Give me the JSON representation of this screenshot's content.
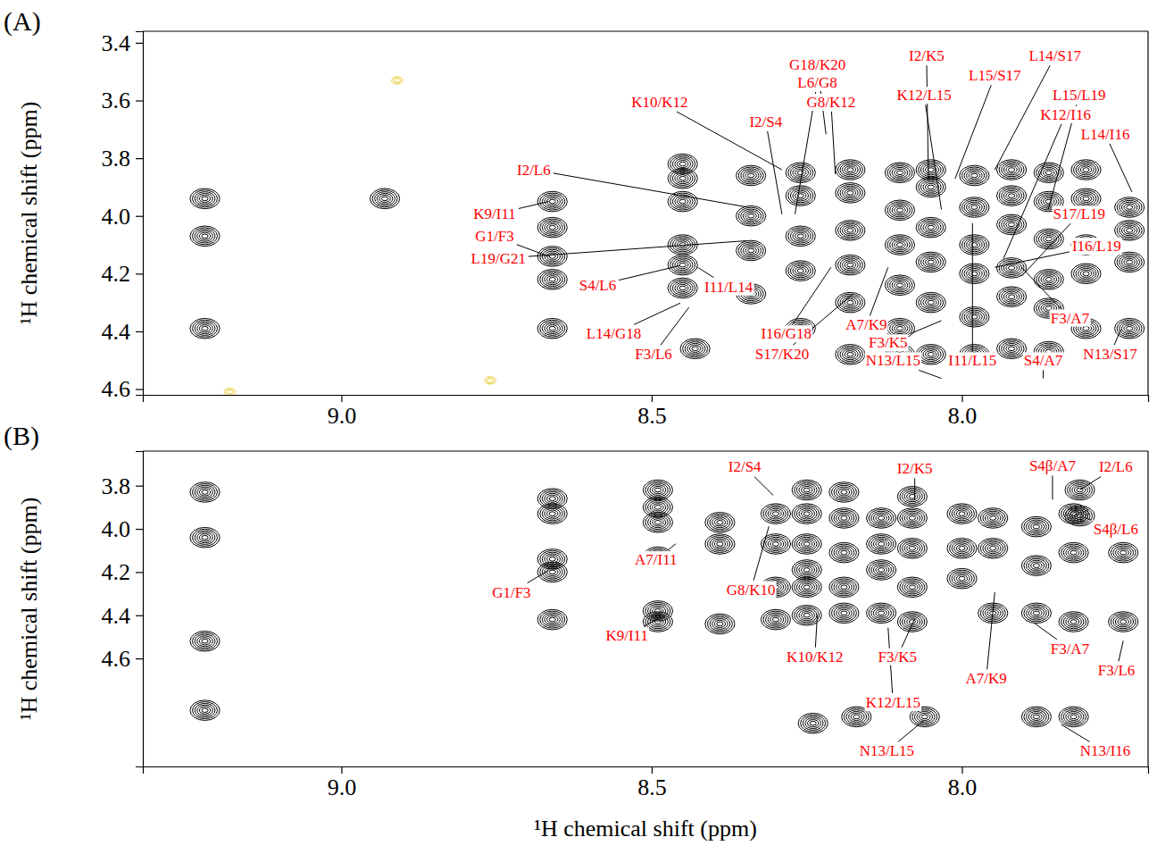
{
  "chart_data": [
    {
      "type": "contour",
      "title": "(A)",
      "ylabel": "¹H chemical shift (ppm)",
      "xlim": [
        9.32,
        7.7
      ],
      "ylim": [
        3.36,
        4.62
      ],
      "xticks": [
        {
          "value": 9,
          "label": "9.0"
        },
        8.5,
        {
          "value": 8,
          "label": "8.0"
        }
      ],
      "yticks": [
        3.4,
        3.6,
        3.8,
        {
          "value": 4,
          "label": "4.0"
        },
        4.2,
        4.4,
        4.6
      ],
      "series": [
        {
          "color": "#000000",
          "marker": "contour",
          "x": [
            9.22,
            9.22,
            9.22,
            8.93,
            8.66,
            8.66,
            8.66,
            8.66,
            8.66,
            8.45,
            8.45,
            8.45,
            8.45,
            8.45,
            8.45,
            8.43,
            8.34,
            8.34,
            8.34,
            8.34,
            8.26,
            8.26,
            8.26,
            8.26,
            8.26,
            8.18,
            8.18,
            8.18,
            8.18,
            8.18,
            8.18,
            8.1,
            8.1,
            8.1,
            8.1,
            8.1,
            8.1,
            8.05,
            8.05,
            8.05,
            8.05,
            8.05,
            8.05,
            7.98,
            7.98,
            7.98,
            7.98,
            7.98,
            7.98,
            7.92,
            7.92,
            7.92,
            7.92,
            7.92,
            7.92,
            7.86,
            7.86,
            7.86,
            7.86,
            7.86,
            7.86,
            7.8,
            7.8,
            7.8,
            7.8,
            7.8,
            7.73,
            7.73,
            7.73,
            7.73
          ],
          "y": [
            3.94,
            4.07,
            4.39,
            3.94,
            3.95,
            4.04,
            4.14,
            4.22,
            4.39,
            3.82,
            3.87,
            3.95,
            4.1,
            4.17,
            4.25,
            4.46,
            3.86,
            4.0,
            4.12,
            4.27,
            3.85,
            3.93,
            4.07,
            4.19,
            4.39,
            3.84,
            3.92,
            4.05,
            4.17,
            4.3,
            4.48,
            3.85,
            3.98,
            4.1,
            4.24,
            4.39,
            4.48,
            3.84,
            3.9,
            4.04,
            4.16,
            4.3,
            4.48,
            3.86,
            3.97,
            4.1,
            4.2,
            4.35,
            4.48,
            3.84,
            3.93,
            4.03,
            4.18,
            4.28,
            4.46,
            3.85,
            3.95,
            4.08,
            4.22,
            4.32,
            4.47,
            3.84,
            3.94,
            4.1,
            4.2,
            4.39,
            3.97,
            4.05,
            4.16,
            4.39
          ]
        },
        {
          "color": "#e6c619",
          "marker": "contour",
          "x": [
            8.91,
            9.18,
            8.76
          ],
          "y": [
            3.53,
            4.61,
            4.57
          ]
        }
      ],
      "annotations": [
        {
          "text": "K10/K12",
          "x": 8.29,
          "y": 3.84,
          "text_x": 8.487,
          "text_y": 3.606
        },
        {
          "text": "G18/K20",
          "x": 8.219,
          "y": 3.717,
          "text_x": 8.233,
          "text_y": 3.477
        },
        {
          "text": "L6/G8",
          "x": 8.269,
          "y": 3.994,
          "text_x": 8.233,
          "text_y": 3.538
        },
        {
          "text": "G8/K12",
          "x": 8.204,
          "y": 3.855,
          "text_x": 8.211,
          "text_y": 3.606
        },
        {
          "text": "I2/S4",
          "x": 8.29,
          "y": 3.994,
          "text_x": 8.316,
          "text_y": 3.674
        },
        {
          "text": "I2/K5",
          "x": 8.054,
          "y": 3.871,
          "text_x": 8.057,
          "text_y": 3.446
        },
        {
          "text": "L14/S17",
          "x": 7.947,
          "y": 3.84,
          "text_x": 7.85,
          "text_y": 3.446
        },
        {
          "text": "L15/S17",
          "x": 8.011,
          "y": 3.871,
          "text_x": 7.947,
          "text_y": 3.514
        },
        {
          "text": "K12/L15",
          "x": 8.033,
          "y": 3.978,
          "text_x": 8.061,
          "text_y": 3.582
        },
        {
          "text": "L15/L19",
          "x": 7.861,
          "y": 3.978,
          "text_x": 7.811,
          "text_y": 3.582
        },
        {
          "text": "K12/I16",
          "x": 7.933,
          "y": 4.148,
          "text_x": 7.833,
          "text_y": 3.649
        },
        {
          "text": "L14/I16",
          "x": 7.726,
          "y": 3.917,
          "text_x": 7.769,
          "text_y": 3.717
        },
        {
          "text": "S17/L19",
          "x": 7.904,
          "y": 4.209,
          "text_x": 7.811,
          "text_y": 3.994
        },
        {
          "text": "I16/L19",
          "x": 7.947,
          "y": 4.178,
          "text_x": 7.783,
          "text_y": 4.105
        },
        {
          "text": "I2/L6",
          "x": 8.347,
          "y": 3.969,
          "text_x": 8.69,
          "text_y": 3.84
        },
        {
          "text": "K9/I11",
          "x": 8.666,
          "y": 3.95,
          "text_x": 8.753,
          "text_y": 3.994
        },
        {
          "text": "G1/F3",
          "x": 8.666,
          "y": 4.14,
          "text_x": 8.753,
          "text_y": 4.071
        },
        {
          "text": "L19/G21",
          "x": 8.347,
          "y": 4.086,
          "text_x": 8.747,
          "text_y": 4.148
        },
        {
          "text": "S4/L6",
          "x": 8.454,
          "y": 4.172,
          "text_x": 8.587,
          "text_y": 4.24
        },
        {
          "text": "I11/L14",
          "x": 8.426,
          "y": 4.178,
          "text_x": 8.376,
          "text_y": 4.246
        },
        {
          "text": "L14/G18",
          "x": 8.454,
          "y": 4.302,
          "text_x": 8.561,
          "text_y": 4.409
        },
        {
          "text": "F3/L6",
          "x": 8.44,
          "y": 4.317,
          "text_x": 8.497,
          "text_y": 4.48
        },
        {
          "text": "I16/G18",
          "x": 8.211,
          "y": 4.178,
          "text_x": 8.283,
          "text_y": 4.409
        },
        {
          "text": "S17/K20",
          "x": 8.176,
          "y": 4.271,
          "text_x": 8.29,
          "text_y": 4.48
        },
        {
          "text": "A7/K9",
          "x": 8.119,
          "y": 4.178,
          "text_x": 8.154,
          "text_y": 4.378
        },
        {
          "text": "F3/K5",
          "x": 8.033,
          "y": 4.363,
          "text_x": 8.119,
          "text_y": 4.44
        },
        {
          "text": "N13/L15",
          "x": 8.033,
          "y": 4.563,
          "text_x": 8.111,
          "text_y": 4.502
        },
        {
          "text": "I11/L15",
          "x": 7.983,
          "y": 4.025,
          "text_x": 7.983,
          "text_y": 4.502
        },
        {
          "text": "S4/A7",
          "x": 7.869,
          "y": 4.563,
          "text_x": 7.869,
          "text_y": 4.502
        },
        {
          "text": "F3/A7",
          "x": 7.904,
          "y": 4.178,
          "text_x": 7.826,
          "text_y": 4.354
        },
        {
          "text": "N13/S17",
          "x": 7.744,
          "y": 4.394,
          "text_x": 7.761,
          "text_y": 4.48
        }
      ]
    },
    {
      "type": "contour",
      "title": "(B)",
      "xlabel": "¹H chemical shift (ppm)",
      "ylabel": "¹H chemical shift (ppm)",
      "xlim": [
        9.32,
        7.7
      ],
      "ylim": [
        3.64,
        5.1
      ],
      "xticks": [
        {
          "value": 9,
          "label": "9.0"
        },
        8.5,
        {
          "value": 8,
          "label": "8.0"
        }
      ],
      "yticks": [
        3.8,
        {
          "value": 4,
          "label": "4.0"
        },
        4.2,
        4.4,
        4.6
      ],
      "series": [
        {
          "color": "#000000",
          "marker": "contour",
          "x": [
            9.22,
            9.22,
            9.22,
            9.22,
            8.66,
            8.66,
            8.66,
            8.66,
            8.66,
            8.49,
            8.49,
            8.49,
            8.49,
            8.49,
            8.49,
            8.39,
            8.39,
            8.39,
            8.3,
            8.3,
            8.3,
            8.3,
            8.25,
            8.25,
            8.25,
            8.25,
            8.25,
            8.25,
            8.19,
            8.19,
            8.19,
            8.19,
            8.19,
            8.13,
            8.13,
            8.13,
            8.13,
            8.08,
            8.08,
            8.08,
            8.08,
            8.08,
            8.0,
            8.0,
            8.0,
            7.95,
            7.95,
            7.95,
            7.88,
            7.88,
            7.88,
            7.88,
            7.82,
            7.82,
            7.82,
            7.82,
            7.74,
            7.74,
            8.06,
            8.17,
            8.24,
            7.81,
            7.81
          ],
          "y": [
            3.83,
            4.04,
            4.52,
            4.84,
            3.86,
            3.93,
            4.14,
            4.2,
            4.42,
            3.82,
            3.9,
            3.97,
            4.13,
            4.38,
            4.43,
            3.97,
            4.07,
            4.44,
            3.93,
            4.07,
            4.27,
            4.42,
            3.82,
            3.93,
            4.07,
            4.19,
            4.27,
            4.4,
            3.83,
            3.95,
            4.11,
            4.27,
            4.39,
            3.95,
            4.07,
            4.19,
            4.39,
            3.85,
            3.95,
            4.09,
            4.27,
            4.43,
            3.93,
            4.09,
            4.23,
            3.95,
            4.09,
            4.39,
            3.99,
            4.17,
            4.39,
            4.87,
            3.93,
            4.11,
            4.43,
            4.87,
            4.11,
            4.43,
            4.87,
            4.87,
            4.9,
            3.82,
            3.94
          ]
        }
      ],
      "annotations": [
        {
          "text": "I2/S4",
          "x": 8.304,
          "y": 3.845,
          "text_x": 8.35,
          "text_y": 3.714
        },
        {
          "text": "I2/K5",
          "x": 8.076,
          "y": 3.865,
          "text_x": 8.076,
          "text_y": 3.722
        },
        {
          "text": "S4β/A7",
          "x": 7.854,
          "y": 3.865,
          "text_x": 7.854,
          "text_y": 3.71
        },
        {
          "text": "I2/L6",
          "x": 7.81,
          "y": 3.82,
          "text_x": 7.752,
          "text_y": 3.714
        },
        {
          "text": "S4β/L6",
          "x": 7.81,
          "y": 3.94,
          "text_x": 7.752,
          "text_y": 4.0
        },
        {
          "text": "A7/I11",
          "x": 8.461,
          "y": 4.069,
          "text_x": 8.493,
          "text_y": 4.143
        },
        {
          "text": "G8/K10",
          "x": 8.311,
          "y": 3.988,
          "text_x": 8.34,
          "text_y": 4.282
        },
        {
          "text": "G1/F3",
          "x": 8.666,
          "y": 4.192,
          "text_x": 8.726,
          "text_y": 4.294
        },
        {
          "text": "K9/I11",
          "x": 8.49,
          "y": 4.416,
          "text_x": 8.54,
          "text_y": 4.494
        },
        {
          "text": "K10/K12",
          "x": 8.233,
          "y": 4.396,
          "text_x": 8.237,
          "text_y": 4.592
        },
        {
          "text": "F3/K5",
          "x": 8.076,
          "y": 4.416,
          "text_x": 8.104,
          "text_y": 4.592
        },
        {
          "text": "F3/A7",
          "x": 7.883,
          "y": 4.437,
          "text_x": 7.826,
          "text_y": 4.555
        },
        {
          "text": "F3/L6",
          "x": 7.74,
          "y": 4.518,
          "text_x": 7.751,
          "text_y": 4.657
        },
        {
          "text": "A7/K9",
          "x": 7.947,
          "y": 4.294,
          "text_x": 7.961,
          "text_y": 4.694
        },
        {
          "text": "K12/L15",
          "x": 8.119,
          "y": 4.457,
          "text_x": 8.111,
          "text_y": 4.804
        },
        {
          "text": "N13/L15",
          "x": 8.061,
          "y": 4.886,
          "text_x": 8.121,
          "text_y": 5.029
        },
        {
          "text": "N13/I16",
          "x": 7.84,
          "y": 4.906,
          "text_x": 7.769,
          "text_y": 5.029
        }
      ]
    }
  ]
}
